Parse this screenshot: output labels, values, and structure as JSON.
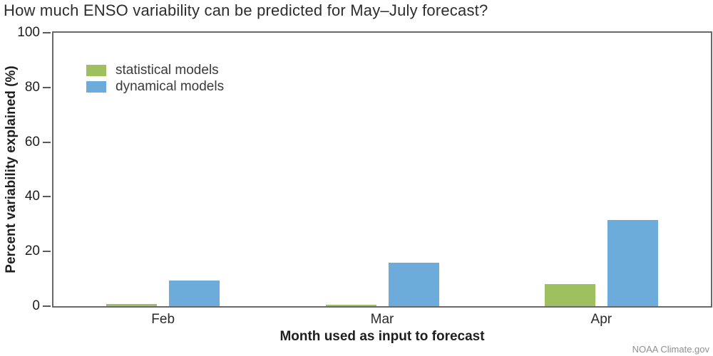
{
  "title": "How much ENSO variability can be predicted for May–July forecast?",
  "attribution": "NOAA Climate.gov",
  "chart_data": {
    "type": "bar",
    "title": "How much ENSO variability can be predicted for May–July forecast?",
    "xlabel": "Month used as input to forecast",
    "ylabel": "Percent variability explained (%)",
    "ylim": [
      0,
      100
    ],
    "yticks": [
      0,
      20,
      40,
      60,
      80,
      100
    ],
    "categories": [
      "Feb",
      "Mar",
      "Apr"
    ],
    "series": [
      {
        "name": "statistical models",
        "color": "#9ec05e",
        "values": [
          0.7,
          0.5,
          8
        ]
      },
      {
        "name": "dynamical models",
        "color": "#6bacdb",
        "values": [
          9.5,
          16,
          31.5
        ]
      }
    ],
    "legend_position": "top-left",
    "grid": false,
    "colors": {
      "axis": "#696969",
      "text": "#2d2d2d",
      "attribution": "#909090"
    }
  }
}
